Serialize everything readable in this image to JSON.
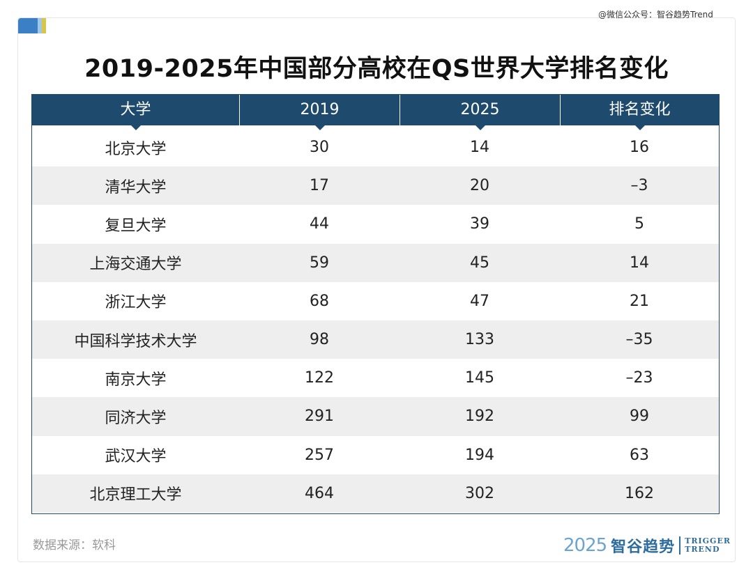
{
  "watermark": "@微信公众号：智谷趋势Trend",
  "title": "2019-2025年中国部分高校在QS世界大学排名变化",
  "chart_data": {
    "type": "table",
    "title": "2019-2025年中国部分高校在QS世界大学排名变化",
    "columns": [
      "大学",
      "2019",
      "2025",
      "排名变化"
    ],
    "rows": [
      [
        "北京大学",
        "30",
        "14",
        "16"
      ],
      [
        "清华大学",
        "17",
        "20",
        "–3"
      ],
      [
        "复旦大学",
        "44",
        "39",
        "5"
      ],
      [
        "上海交通大学",
        "59",
        "45",
        "14"
      ],
      [
        "浙江大学",
        "68",
        "47",
        "21"
      ],
      [
        "中国科学技术大学",
        "98",
        "133",
        "–35"
      ],
      [
        "南京大学",
        "122",
        "145",
        "–23"
      ],
      [
        "同济大学",
        "291",
        "192",
        "99"
      ],
      [
        "武汉大学",
        "257",
        "194",
        "63"
      ],
      [
        "北京理工大学",
        "464",
        "302",
        "162"
      ]
    ]
  },
  "source": "数据来源：软科",
  "brand": {
    "year": "2025",
    "name_cn": "智谷趋势",
    "name_en_1": "TRIGGER",
    "name_en_2": "TREND"
  },
  "colors": {
    "header_bg": "#1e4a6e",
    "stripe": "#eeeeee",
    "brand": "#2f6c9e"
  }
}
